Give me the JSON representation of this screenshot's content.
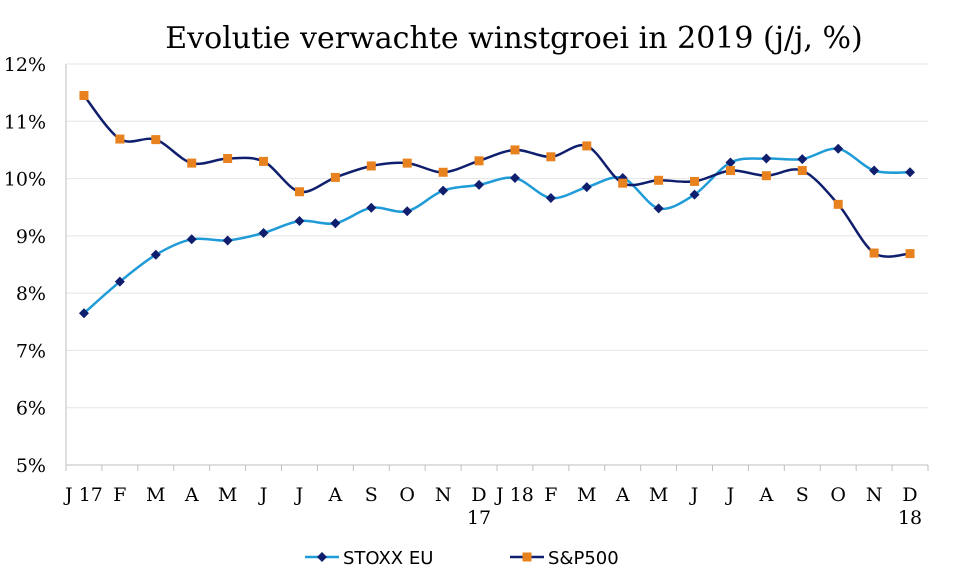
{
  "chart_data": {
    "type": "line",
    "title": "Evolutie verwachte winstgroei in 2019 (j/j, %)",
    "xlabel": "",
    "ylabel": "",
    "ylim": [
      5,
      12
    ],
    "y_ticks": [
      "5%",
      "6%",
      "7%",
      "8%",
      "9%",
      "10%",
      "11%",
      "12%"
    ],
    "categories": [
      [
        "J 17"
      ],
      [
        "F"
      ],
      [
        "M"
      ],
      [
        "A"
      ],
      [
        "M"
      ],
      [
        "J"
      ],
      [
        "J"
      ],
      [
        "A"
      ],
      [
        "S"
      ],
      [
        "O"
      ],
      [
        "N"
      ],
      [
        "D",
        "17"
      ],
      [
        "J 18"
      ],
      [
        "F"
      ],
      [
        "M"
      ],
      [
        "A"
      ],
      [
        "M"
      ],
      [
        "J"
      ],
      [
        "J"
      ],
      [
        "A"
      ],
      [
        "S"
      ],
      [
        "O"
      ],
      [
        "N"
      ],
      [
        "D",
        "18"
      ]
    ],
    "grid": true,
    "legend_position": "bottom",
    "series": [
      {
        "name": "STOXX EU",
        "line_color": "#1f9bd7",
        "marker_color": "#0f1f6e",
        "marker": "diamond",
        "values": [
          7.65,
          8.2,
          8.67,
          8.94,
          8.92,
          9.05,
          9.26,
          9.22,
          9.49,
          9.43,
          9.79,
          9.89,
          10.01,
          9.66,
          9.85,
          10.01,
          9.48,
          9.72,
          10.28,
          10.35,
          10.34,
          10.52,
          10.14,
          10.11
        ]
      },
      {
        "name": "S&P500",
        "line_color": "#0f1f6e",
        "marker_color": "#e8821e",
        "marker": "square",
        "values": [
          11.45,
          10.69,
          10.68,
          10.27,
          10.35,
          10.3,
          9.77,
          10.02,
          10.22,
          10.27,
          10.11,
          10.31,
          10.5,
          10.38,
          10.57,
          9.92,
          9.97,
          9.95,
          10.14,
          10.05,
          10.14,
          9.55,
          8.7,
          8.69
        ]
      }
    ]
  }
}
